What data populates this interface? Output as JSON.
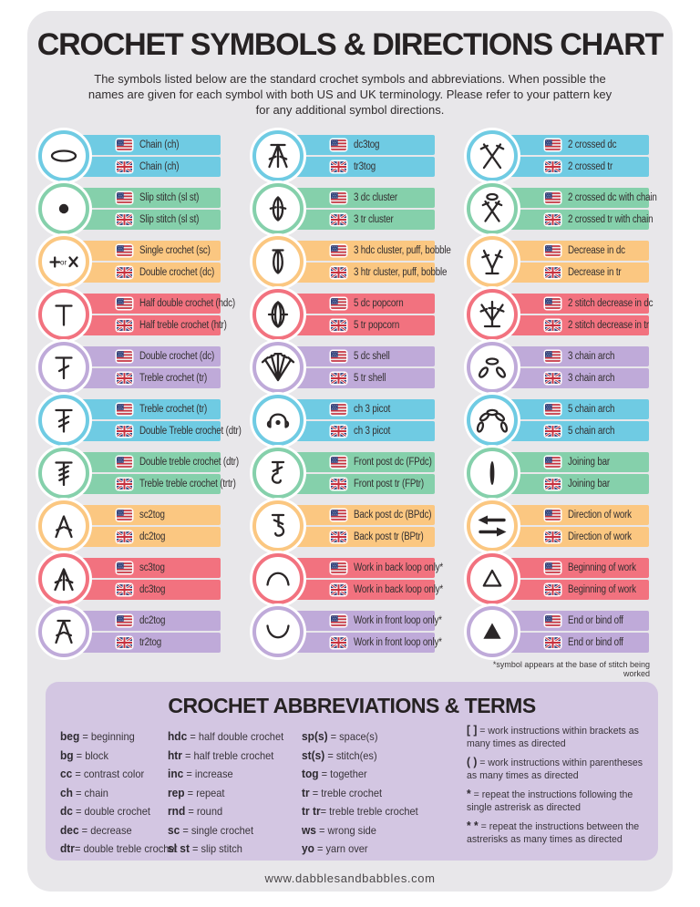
{
  "title": "CROCHET SYMBOLS & DIRECTIONS CHART",
  "subtitle": "The symbols listed below are the standard crochet symbols and abbreviations. When possible the\nnames are given for each symbol with both US and UK terminology. Please refer to your pattern key\nfor any additional symbol directions.",
  "colors": {
    "cyan": "#6fcbe3",
    "green": "#85d0ab",
    "orange": "#fbc781",
    "red": "#f2727f",
    "purple": "#bfaad9",
    "abbrev_box": "#d3c6e2",
    "card_bg": "#e8e7ea",
    "ink": "#2a2627"
  },
  "color_cycle": [
    "cyan",
    "green",
    "orange",
    "red",
    "purple"
  ],
  "flags": {
    "us": "us-flag-icon",
    "uk": "uk-flag-icon"
  },
  "symbol_columns": [
    [
      {
        "icon": "chain",
        "us": "Chain (ch)",
        "uk": "Chain (ch)"
      },
      {
        "icon": "slip-stitch",
        "us": "Slip stitch (sl st)",
        "uk": "Slip stitch (sl st)"
      },
      {
        "icon": "single-crochet",
        "us": "Single crochet (sc)",
        "uk": "Double crochet (dc)"
      },
      {
        "icon": "half-double-crochet",
        "us": "Half double crochet (hdc)",
        "uk": "Half treble crochet (htr)"
      },
      {
        "icon": "double-crochet",
        "us": "Double crochet (dc)",
        "uk": "Treble crochet (tr)"
      },
      {
        "icon": "treble-crochet",
        "us": "Treble crochet (tr)",
        "uk": "Double Treble crochet (dtr)"
      },
      {
        "icon": "double-treble-crochet",
        "us": "Double treble crochet (dtr)",
        "uk": "Treble treble crochet (trtr)"
      },
      {
        "icon": "sc2tog",
        "us": "sc2tog",
        "uk": "dc2tog"
      },
      {
        "icon": "sc3tog",
        "us": "sc3tog",
        "uk": "dc3tog"
      },
      {
        "icon": "dc2tog",
        "us": "dc2tog",
        "uk": "tr2tog"
      }
    ],
    [
      {
        "icon": "dc3tog",
        "us": "dc3tog",
        "uk": "tr3tog"
      },
      {
        "icon": "3-dc-cluster",
        "us": "3 dc cluster",
        "uk": "3 tr cluster"
      },
      {
        "icon": "3-hdc-cluster",
        "us": "3 hdc cluster, puff, bobble",
        "uk": "3 htr cluster, puff, bobble"
      },
      {
        "icon": "5-dc-popcorn",
        "us": "5 dc popcorn",
        "uk": "5 tr popcorn"
      },
      {
        "icon": "5-dc-shell",
        "us": "5 dc shell",
        "uk": "5 tr shell"
      },
      {
        "icon": "ch-3-picot",
        "us": "ch 3 picot",
        "uk": "ch 3 picot"
      },
      {
        "icon": "front-post-dc",
        "us": "Front post dc (FPdc)",
        "uk": "Front post tr (FPtr)"
      },
      {
        "icon": "back-post-dc",
        "us": "Back post dc (BPdc)",
        "uk": "Back post tr (BPtr)"
      },
      {
        "icon": "work-back-loop",
        "us": "Work in back loop only*",
        "uk": "Work in back loop only*"
      },
      {
        "icon": "work-front-loop",
        "us": "Work in front loop only*",
        "uk": "Work in front loop only*"
      }
    ],
    [
      {
        "icon": "2-crossed-dc",
        "us": "2 crossed dc",
        "uk": "2 crossed tr"
      },
      {
        "icon": "2-crossed-dc-chain",
        "us": "2 crossed dc with chain",
        "uk": "2 crossed tr with chain"
      },
      {
        "icon": "decrease-in-dc",
        "us": "Decrease in dc",
        "uk": "Decrease in tr"
      },
      {
        "icon": "2-stitch-decrease",
        "us": "2 stitch decrease in dc",
        "uk": "2 stitch decrease in tr"
      },
      {
        "icon": "3-chain-arch",
        "us": "3 chain arch",
        "uk": "3 chain arch"
      },
      {
        "icon": "5-chain-arch",
        "us": "5 chain arch",
        "uk": "5 chain arch"
      },
      {
        "icon": "joining-bar",
        "us": "Joining bar",
        "uk": "Joining bar"
      },
      {
        "icon": "direction-of-work",
        "us": "Direction of work",
        "uk": "Direction of work"
      },
      {
        "icon": "beginning-of-work",
        "us": "Beginning of work",
        "uk": "Beginning of work"
      },
      {
        "icon": "end-or-bind-off",
        "us": "End or bind off",
        "uk": "End or bind off"
      }
    ]
  ],
  "footnote": "*symbol appears at the base of stitch being worked",
  "abbreviations": {
    "title": "CROCHET ABBREVIATIONS & TERMS",
    "columns": [
      [
        {
          "a": "beg",
          "sep": " = ",
          "d": "beginning"
        },
        {
          "a": "bg",
          "sep": " = ",
          "d": "block"
        },
        {
          "a": "cc",
          "sep": " = ",
          "d": "contrast color"
        },
        {
          "a": "ch",
          "sep": " = ",
          "d": "chain"
        },
        {
          "a": "dc",
          "sep": " = ",
          "d": "double crochet"
        },
        {
          "a": "dec",
          "sep": " = ",
          "d": "decrease"
        },
        {
          "a": "dtr",
          "sep": "= ",
          "d": "double treble crochet"
        }
      ],
      [
        {
          "a": "hdc",
          "sep": " = ",
          "d": "half double crochet"
        },
        {
          "a": "htr",
          "sep": " = ",
          "d": "half treble crochet"
        },
        {
          "a": "inc",
          "sep": " = ",
          "d": "increase"
        },
        {
          "a": "rep",
          "sep": " = ",
          "d": "repeat"
        },
        {
          "a": "rnd",
          "sep": " = ",
          "d": "round"
        },
        {
          "a": "sc",
          "sep": " = ",
          "d": "single crochet"
        },
        {
          "a": "sl st",
          "sep": " = ",
          "d": "slip stitch"
        }
      ],
      [
        {
          "a": "sp(s)",
          "sep": " = ",
          "d": "space(s)"
        },
        {
          "a": "st(s)",
          "sep": " = ",
          "d": "stitch(es)"
        },
        {
          "a": "tog",
          "sep": " = ",
          "d": "together"
        },
        {
          "a": "tr",
          "sep": " = ",
          "d": "treble crochet"
        },
        {
          "a": "tr tr",
          "sep": "= ",
          "d": "treble treble crochet"
        },
        {
          "a": "ws",
          "sep": " = ",
          "d": "wrong side"
        },
        {
          "a": "yo",
          "sep": " = ",
          "d": "yarn over"
        }
      ],
      [
        {
          "a": "[ ]",
          "sep": " = ",
          "d": "work instructions within brackets as many times as directed"
        },
        {
          "a": "( )",
          "sep": " = ",
          "d": "work instructions within parentheses as many times as directed"
        },
        {
          "a": "*",
          "sep": " = ",
          "d": "repeat the instructions following the single astrerisk as directed"
        },
        {
          "a": "* *",
          "sep": " = ",
          "d": "repeat the instructions between the astrerisks as many times as directed"
        }
      ]
    ]
  },
  "footer": {
    "url": "www.dabblesandbabbles.com"
  }
}
